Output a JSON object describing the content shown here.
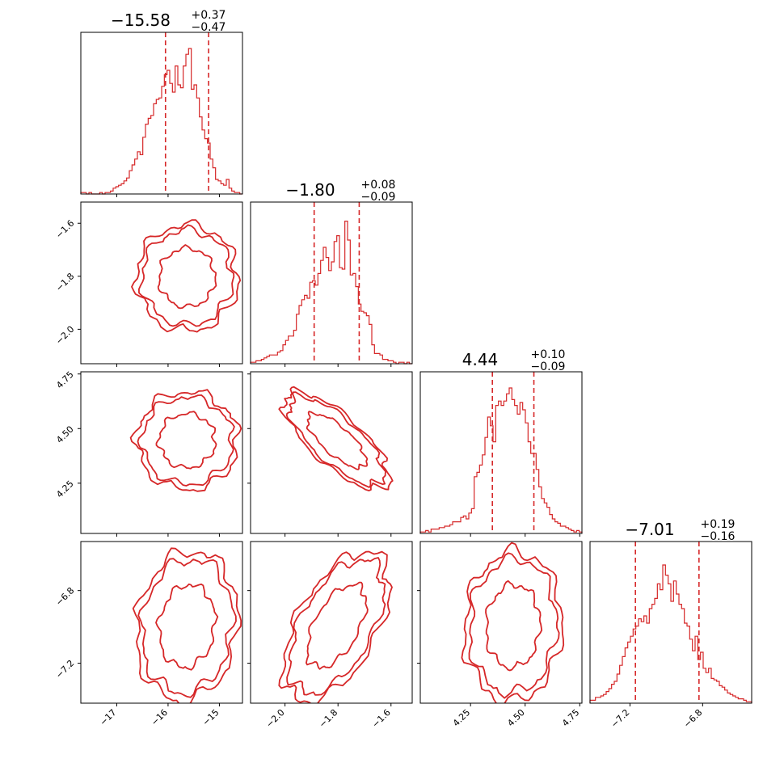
{
  "chart_data": {
    "type": "corner",
    "color": "#d62728",
    "parameters": [
      {
        "median": "−15.58",
        "plus": "+0.37",
        "minus": "−0.47",
        "range": [
          -17.7,
          -14.55
        ],
        "q16": -16.05,
        "q84": -15.21,
        "ticks": [
          -17,
          -16,
          -15
        ],
        "tick_labels": [
          "−17",
          "−16",
          "−15"
        ]
      },
      {
        "median": "−1.80",
        "plus": "+0.08",
        "minus": "−0.09",
        "range": [
          -2.13,
          -1.52
        ],
        "q16": -1.89,
        "q84": -1.72,
        "ticks": [
          -2.0,
          -1.8,
          -1.6
        ],
        "tick_labels": [
          "−2.0",
          "−1.8",
          "−1.6"
        ]
      },
      {
        "median": "4.44",
        "plus": "+0.10",
        "minus": "−0.09",
        "range": [
          4.02,
          4.76
        ],
        "q16": 4.35,
        "q84": 4.54,
        "ticks": [
          4.25,
          4.5,
          4.75
        ],
        "tick_labels": [
          "4.25",
          "4.50",
          "4.75"
        ]
      },
      {
        "median": "−7.01",
        "plus": "+0.19",
        "minus": "−0.16",
        "range": [
          -7.42,
          -6.53
        ],
        "q16": -7.17,
        "q84": -6.82,
        "ticks": [
          -7.2,
          -6.8
        ],
        "tick_labels": [
          "−7.2",
          "−6.8"
        ]
      }
    ],
    "histograms": [
      [
        0.01,
        0.01,
        0.0,
        0.01,
        0.0,
        0.0,
        0.0,
        0.01,
        0.0,
        0.01,
        0.01,
        0.02,
        0.04,
        0.05,
        0.06,
        0.07,
        0.09,
        0.11,
        0.16,
        0.2,
        0.24,
        0.29,
        0.27,
        0.39,
        0.48,
        0.52,
        0.54,
        0.62,
        0.65,
        0.66,
        0.74,
        0.82,
        0.85,
        0.76,
        0.7,
        0.88,
        0.75,
        0.73,
        0.88,
        0.96,
        1.0,
        0.72,
        0.75,
        0.66,
        0.53,
        0.44,
        0.38,
        0.35,
        0.24,
        0.18,
        0.1,
        0.09,
        0.07,
        0.06,
        0.1,
        0.04,
        0.02,
        0.01,
        0.01,
        0.0
      ],
      [
        0.01,
        0.01,
        0.02,
        0.02,
        0.03,
        0.04,
        0.05,
        0.06,
        0.06,
        0.06,
        0.08,
        0.09,
        0.13,
        0.16,
        0.19,
        0.19,
        0.23,
        0.34,
        0.4,
        0.44,
        0.47,
        0.45,
        0.56,
        0.57,
        0.54,
        0.62,
        0.71,
        0.8,
        0.73,
        0.64,
        0.7,
        0.84,
        0.88,
        0.66,
        0.65,
        0.98,
        0.85,
        0.61,
        0.62,
        0.53,
        0.41,
        0.36,
        0.35,
        0.33,
        0.27,
        0.13,
        0.07,
        0.07,
        0.06,
        0.03,
        0.03,
        0.02,
        0.02,
        0.01,
        0.0,
        0.01,
        0.01,
        0.0,
        0.01,
        0.0
      ],
      [
        0.01,
        0.01,
        0.02,
        0.01,
        0.03,
        0.03,
        0.03,
        0.04,
        0.04,
        0.05,
        0.05,
        0.06,
        0.08,
        0.08,
        0.08,
        0.11,
        0.12,
        0.1,
        0.14,
        0.17,
        0.39,
        0.42,
        0.47,
        0.54,
        0.66,
        0.8,
        0.74,
        0.63,
        0.88,
        0.91,
        0.88,
        0.91,
        0.96,
        1.0,
        0.92,
        0.88,
        0.82,
        0.9,
        0.85,
        0.76,
        0.63,
        0.55,
        0.55,
        0.44,
        0.32,
        0.24,
        0.21,
        0.18,
        0.13,
        0.1,
        0.08,
        0.07,
        0.05,
        0.05,
        0.04,
        0.03,
        0.02,
        0.01,
        0.02,
        0.01
      ],
      [
        0.02,
        0.02,
        0.04,
        0.04,
        0.05,
        0.06,
        0.08,
        0.1,
        0.13,
        0.15,
        0.2,
        0.26,
        0.32,
        0.38,
        0.42,
        0.46,
        0.51,
        0.53,
        0.58,
        0.56,
        0.6,
        0.55,
        0.65,
        0.68,
        0.72,
        0.82,
        0.78,
        0.95,
        0.88,
        0.82,
        0.7,
        0.84,
        0.75,
        0.68,
        0.65,
        0.55,
        0.53,
        0.44,
        0.36,
        0.46,
        0.3,
        0.35,
        0.24,
        0.21,
        0.24,
        0.17,
        0.16,
        0.15,
        0.12,
        0.11,
        0.09,
        0.07,
        0.06,
        0.05,
        0.04,
        0.03,
        0.03,
        0.02,
        0.01,
        0.01
      ]
    ],
    "correlations": {
      "1-0": 0.0,
      "2-0": 0.0,
      "2-1": -0.75,
      "3-0": 0.1,
      "3-1": 0.55,
      "3-2": 0.05
    }
  }
}
